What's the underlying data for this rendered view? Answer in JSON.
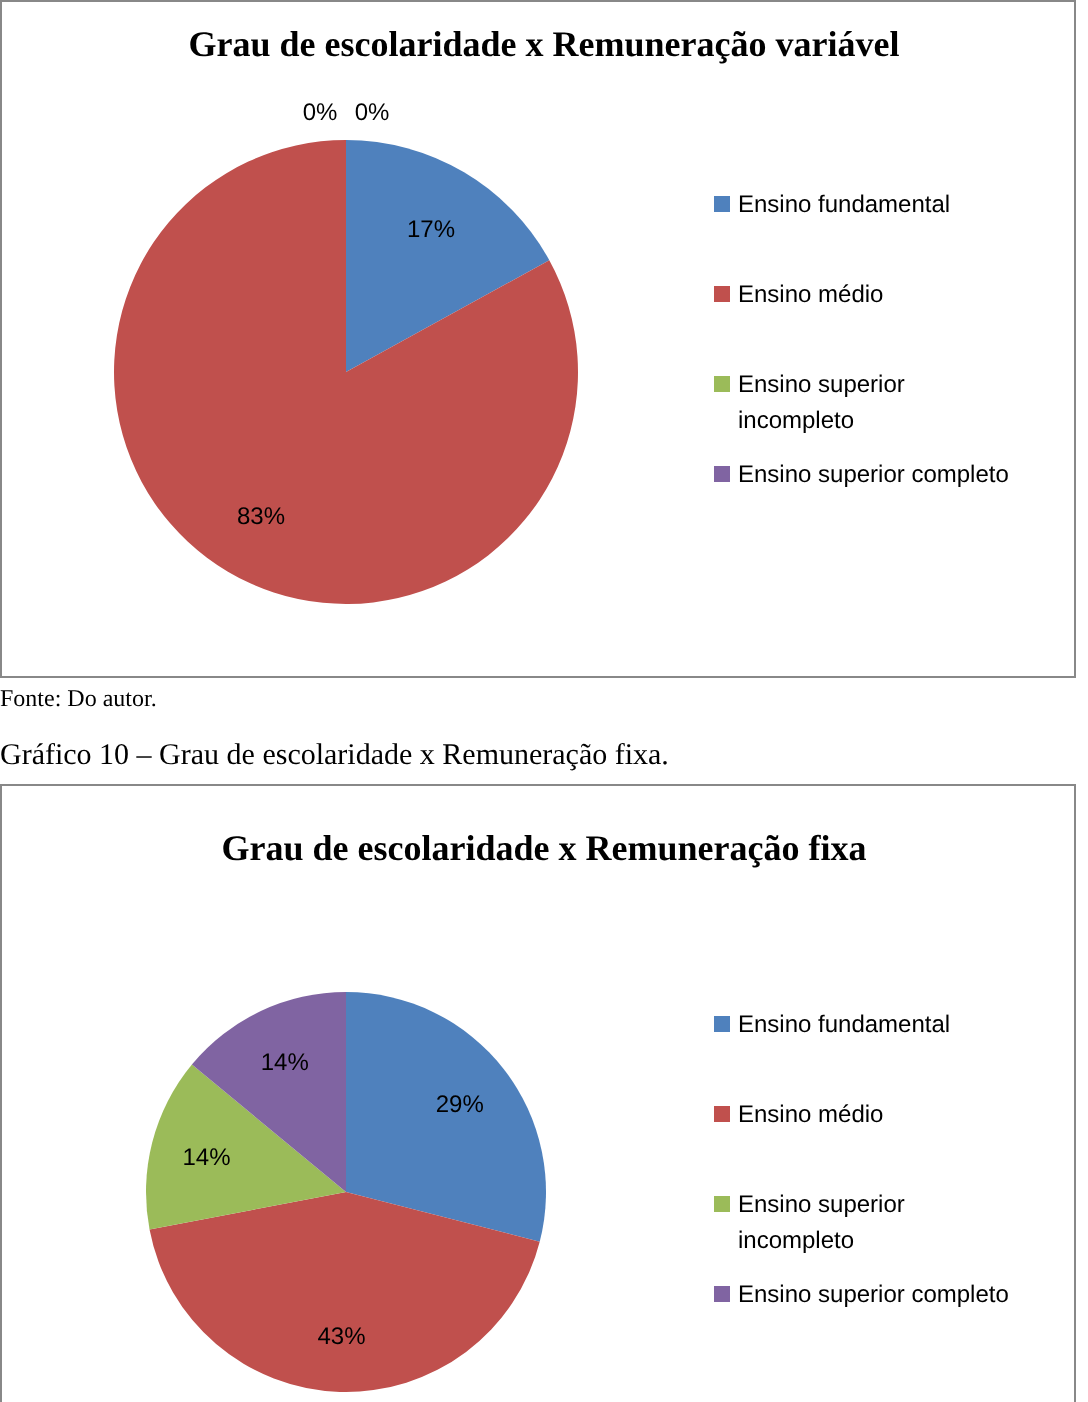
{
  "chart_data": [
    {
      "type": "pie",
      "title": "Grau de escolaridade x Remuneração variável",
      "categories": [
        "Ensino fundamental",
        "Ensino médio",
        "Ensino superior incompleto",
        "Ensino superior completo"
      ],
      "values": [
        17,
        83,
        0,
        0
      ],
      "colors": [
        "#4f81bd",
        "#c0504d",
        "#9bbb59",
        "#8064a2"
      ],
      "value_labels": [
        "17%",
        "83%",
        "0%",
        "0%"
      ],
      "legend": "right",
      "annotations": [
        "Fonte: Do autor."
      ]
    },
    {
      "type": "pie",
      "title": "Grau de escolaridade x Remuneração fixa",
      "categories": [
        "Ensino fundamental",
        "Ensino médio",
        "Ensino superior incompleto",
        "Ensino superior completo"
      ],
      "values": [
        29,
        43,
        14,
        14
      ],
      "colors": [
        "#4f81bd",
        "#c0504d",
        "#9bbb59",
        "#8064a2"
      ],
      "value_labels": [
        "29%",
        "43%",
        "14%",
        "14%"
      ],
      "legend": "right",
      "annotations": [
        "Gráfico 10 – Grau de escolaridade x Remuneração fixa."
      ]
    }
  ]
}
